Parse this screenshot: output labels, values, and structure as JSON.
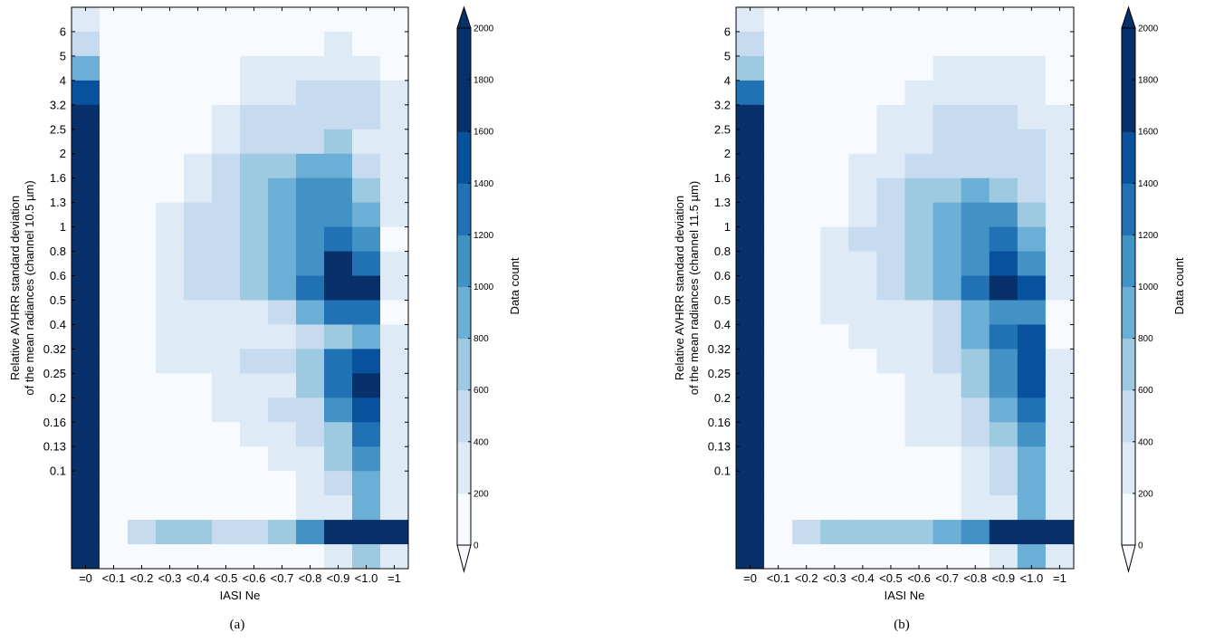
{
  "chart_data": [
    {
      "type": "heatmap",
      "caption": "(a)",
      "xlabel": "IASI Ne",
      "ylabel_line1": "Relative AVHRR standard deviation",
      "ylabel_line2": "of the mean radiances (channel 10.5 µm)",
      "x_categories": [
        "=0",
        "<0.1",
        "<0.2",
        "<0.3",
        "<0.4",
        "<0.5",
        "<0.6",
        "<0.7",
        "<0.8",
        "<0.9",
        "<1.0",
        "=1"
      ],
      "y_tick_labels": [
        "6",
        "5",
        "4",
        "3.2",
        "2.5",
        "2",
        "1.6",
        "1.3",
        "1",
        "0.8",
        "0.6",
        "0.5",
        "0.4",
        "0.32",
        "0.25",
        "0.2",
        "0.16",
        "0.13",
        "0.1"
      ],
      "colorbar": {
        "label": "Data count",
        "ticks": [
          "0",
          "200",
          "400",
          "600",
          "800",
          "1000",
          "1200",
          "1400",
          "1600",
          "1800",
          "2000"
        ],
        "levels": [
          "#f7fbff",
          "#deebf7",
          "#c6dbef",
          "#9ecae1",
          "#6baed6",
          "#4292c6",
          "#2171b5",
          "#08519c",
          "#08306b",
          "#08306b"
        ],
        "extend": "both"
      },
      "level_matrix_top_to_bottom": [
        [
          1,
          0,
          0,
          0,
          0,
          0,
          0,
          0,
          0,
          0,
          0,
          0
        ],
        [
          2,
          0,
          0,
          0,
          0,
          0,
          0,
          0,
          0,
          1,
          0,
          0
        ],
        [
          4,
          0,
          0,
          0,
          0,
          0,
          1,
          1,
          1,
          1,
          1,
          0
        ],
        [
          7,
          0,
          0,
          0,
          0,
          0,
          1,
          1,
          2,
          2,
          2,
          1
        ],
        [
          9,
          0,
          0,
          0,
          0,
          1,
          2,
          2,
          2,
          2,
          2,
          1
        ],
        [
          9,
          0,
          0,
          0,
          0,
          1,
          2,
          2,
          2,
          3,
          1,
          1
        ],
        [
          9,
          0,
          0,
          0,
          1,
          2,
          3,
          3,
          4,
          4,
          2,
          1
        ],
        [
          9,
          0,
          0,
          0,
          1,
          2,
          3,
          4,
          5,
          5,
          3,
          1
        ],
        [
          9,
          0,
          0,
          1,
          2,
          2,
          3,
          4,
          5,
          5,
          4,
          1
        ],
        [
          9,
          0,
          0,
          1,
          2,
          2,
          3,
          4,
          5,
          6,
          5,
          0
        ],
        [
          9,
          0,
          0,
          1,
          2,
          2,
          3,
          4,
          5,
          8,
          6,
          1
        ],
        [
          9,
          0,
          0,
          1,
          2,
          2,
          3,
          4,
          6,
          9,
          8,
          1
        ],
        [
          9,
          0,
          0,
          1,
          1,
          1,
          1,
          2,
          4,
          6,
          6,
          0
        ],
        [
          9,
          0,
          0,
          1,
          1,
          1,
          1,
          1,
          2,
          3,
          4,
          1
        ],
        [
          9,
          0,
          0,
          1,
          1,
          1,
          2,
          2,
          3,
          6,
          7,
          1
        ],
        [
          9,
          0,
          0,
          0,
          0,
          1,
          1,
          1,
          3,
          6,
          8,
          1
        ],
        [
          9,
          0,
          0,
          0,
          0,
          1,
          1,
          2,
          2,
          5,
          7,
          1
        ],
        [
          9,
          0,
          0,
          0,
          0,
          0,
          1,
          1,
          2,
          3,
          6,
          1
        ],
        [
          9,
          0,
          0,
          0,
          0,
          0,
          0,
          1,
          1,
          3,
          5,
          1
        ],
        [
          9,
          0,
          0,
          0,
          0,
          0,
          0,
          0,
          1,
          2,
          4,
          1
        ],
        [
          9,
          0,
          0,
          0,
          0,
          0,
          0,
          0,
          1,
          1,
          4,
          1
        ],
        [
          9,
          0,
          2,
          3,
          3,
          2,
          2,
          3,
          5,
          9,
          9,
          9
        ],
        [
          9,
          0,
          0,
          0,
          0,
          0,
          0,
          0,
          0,
          1,
          3,
          1
        ]
      ]
    },
    {
      "type": "heatmap",
      "caption": "(b)",
      "xlabel": "IASI Ne",
      "ylabel_line1": "Relative AVHRR standard deviation",
      "ylabel_line2": "of the mean radiances (channel 11.5 µm)",
      "x_categories": [
        "=0",
        "<0.1",
        "<0.2",
        "<0.3",
        "<0.4",
        "<0.5",
        "<0.6",
        "<0.7",
        "<0.8",
        "<0.9",
        "<1.0",
        "=1"
      ],
      "y_tick_labels": [
        "6",
        "5",
        "4",
        "3.2",
        "2.5",
        "2",
        "1.6",
        "1.3",
        "1",
        "0.8",
        "0.6",
        "0.5",
        "0.4",
        "0.32",
        "0.25",
        "0.2",
        "0.16",
        "0.13",
        "0.1"
      ],
      "colorbar": {
        "label": "Data count",
        "ticks": [
          "0",
          "200",
          "400",
          "600",
          "800",
          "1000",
          "1200",
          "1400",
          "1600",
          "1800",
          "2000"
        ],
        "levels": [
          "#f7fbff",
          "#deebf7",
          "#c6dbef",
          "#9ecae1",
          "#6baed6",
          "#4292c6",
          "#2171b5",
          "#08519c",
          "#08306b",
          "#08306b"
        ],
        "extend": "both"
      },
      "level_matrix_top_to_bottom": [
        [
          1,
          0,
          0,
          0,
          0,
          0,
          0,
          0,
          0,
          0,
          0,
          0
        ],
        [
          2,
          0,
          0,
          0,
          0,
          0,
          0,
          0,
          0,
          0,
          0,
          0
        ],
        [
          3,
          0,
          0,
          0,
          0,
          0,
          0,
          1,
          1,
          1,
          1,
          0
        ],
        [
          6,
          0,
          0,
          0,
          0,
          0,
          1,
          1,
          1,
          1,
          1,
          0
        ],
        [
          9,
          0,
          0,
          0,
          0,
          1,
          1,
          2,
          2,
          2,
          1,
          1
        ],
        [
          9,
          0,
          0,
          0,
          0,
          1,
          1,
          2,
          2,
          2,
          2,
          1
        ],
        [
          9,
          0,
          0,
          0,
          1,
          1,
          2,
          2,
          2,
          2,
          2,
          1
        ],
        [
          9,
          0,
          0,
          0,
          1,
          2,
          3,
          3,
          4,
          3,
          2,
          1
        ],
        [
          9,
          0,
          0,
          0,
          1,
          2,
          3,
          4,
          5,
          5,
          3,
          1
        ],
        [
          9,
          0,
          0,
          1,
          2,
          2,
          3,
          4,
          5,
          6,
          4,
          1
        ],
        [
          9,
          0,
          0,
          1,
          1,
          2,
          3,
          4,
          5,
          7,
          5,
          1
        ],
        [
          9,
          0,
          0,
          1,
          1,
          2,
          3,
          4,
          6,
          9,
          7,
          1
        ],
        [
          9,
          0,
          0,
          1,
          1,
          1,
          1,
          2,
          4,
          5,
          5,
          0
        ],
        [
          9,
          0,
          0,
          0,
          1,
          1,
          1,
          2,
          4,
          6,
          7,
          0
        ],
        [
          9,
          0,
          0,
          0,
          0,
          1,
          1,
          2,
          3,
          5,
          7,
          1
        ],
        [
          9,
          0,
          0,
          0,
          0,
          0,
          1,
          1,
          3,
          5,
          7,
          1
        ],
        [
          9,
          0,
          0,
          0,
          0,
          0,
          1,
          1,
          2,
          4,
          6,
          1
        ],
        [
          9,
          0,
          0,
          0,
          0,
          0,
          1,
          1,
          2,
          3,
          5,
          1
        ],
        [
          9,
          0,
          0,
          0,
          0,
          0,
          0,
          0,
          1,
          2,
          4,
          1
        ],
        [
          9,
          0,
          0,
          0,
          0,
          0,
          0,
          0,
          1,
          2,
          4,
          1
        ],
        [
          9,
          0,
          0,
          0,
          0,
          0,
          0,
          0,
          1,
          1,
          4,
          1
        ],
        [
          9,
          0,
          2,
          3,
          3,
          3,
          3,
          4,
          5,
          9,
          9,
          9
        ],
        [
          9,
          0,
          0,
          0,
          0,
          0,
          0,
          0,
          0,
          1,
          4,
          1
        ]
      ]
    }
  ]
}
